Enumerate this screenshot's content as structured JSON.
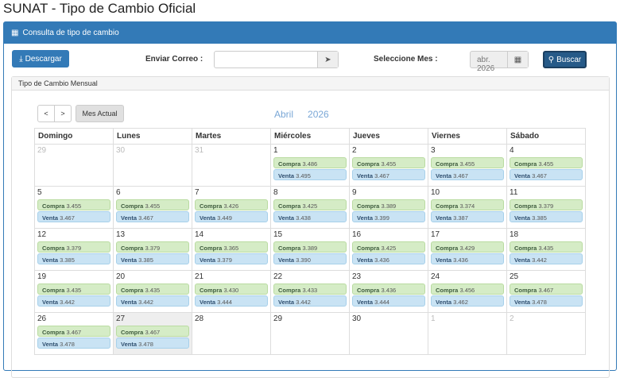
{
  "title": "SUNAT - Tipo de Cambio Oficial",
  "panel": {
    "title": "Consulta de tipo de cambio"
  },
  "toolbar": {
    "download_label": "Descargar",
    "email_label": "Enviar Correo :",
    "email_value": "",
    "month_label": "Seleccione Mes :",
    "month_value": "abr. 2026",
    "search_label": "Buscar"
  },
  "calendar": {
    "panel_title": "Tipo de Cambio Mensual",
    "prev": "<",
    "next": ">",
    "current_month_label": "Mes Actual",
    "month": "Abril",
    "year": "2026",
    "buy_label": "Compra",
    "sell_label": "Venta",
    "weekdays": [
      "Domingo",
      "Lunes",
      "Martes",
      "Miércoles",
      "Jueves",
      "Viernes",
      "Sábado"
    ],
    "weeks": [
      [
        {
          "d": "29",
          "o": true
        },
        {
          "d": "30",
          "o": true
        },
        {
          "d": "31",
          "o": true
        },
        {
          "d": "1",
          "c": "3.486",
          "v": "3.495"
        },
        {
          "d": "2",
          "c": "3.455",
          "v": "3.467"
        },
        {
          "d": "3",
          "c": "3.455",
          "v": "3.467"
        },
        {
          "d": "4",
          "c": "3.455",
          "v": "3.467"
        }
      ],
      [
        {
          "d": "5",
          "c": "3.455",
          "v": "3.467"
        },
        {
          "d": "6",
          "c": "3.455",
          "v": "3.467"
        },
        {
          "d": "7",
          "c": "3.426",
          "v": "3.449"
        },
        {
          "d": "8",
          "c": "3.425",
          "v": "3.438"
        },
        {
          "d": "9",
          "c": "3.389",
          "v": "3.399"
        },
        {
          "d": "10",
          "c": "3.374",
          "v": "3.387"
        },
        {
          "d": "11",
          "c": "3.379",
          "v": "3.385"
        }
      ],
      [
        {
          "d": "12",
          "c": "3.379",
          "v": "3.385"
        },
        {
          "d": "13",
          "c": "3.379",
          "v": "3.385"
        },
        {
          "d": "14",
          "c": "3.365",
          "v": "3.379"
        },
        {
          "d": "15",
          "c": "3.389",
          "v": "3.390"
        },
        {
          "d": "16",
          "c": "3.425",
          "v": "3.436"
        },
        {
          "d": "17",
          "c": "3.429",
          "v": "3.436"
        },
        {
          "d": "18",
          "c": "3.435",
          "v": "3.442"
        }
      ],
      [
        {
          "d": "19",
          "c": "3.435",
          "v": "3.442"
        },
        {
          "d": "20",
          "c": "3.435",
          "v": "3.442"
        },
        {
          "d": "21",
          "c": "3.430",
          "v": "3.444"
        },
        {
          "d": "22",
          "c": "3.433",
          "v": "3.442"
        },
        {
          "d": "23",
          "c": "3.436",
          "v": "3.444"
        },
        {
          "d": "24",
          "c": "3.456",
          "v": "3.462"
        },
        {
          "d": "25",
          "c": "3.467",
          "v": "3.478"
        }
      ],
      [
        {
          "d": "26",
          "c": "3.467",
          "v": "3.478"
        },
        {
          "d": "27",
          "c": "3.467",
          "v": "3.478",
          "today": true
        },
        {
          "d": "28"
        },
        {
          "d": "29"
        },
        {
          "d": "30"
        },
        {
          "d": "1",
          "o": true
        },
        {
          "d": "2",
          "o": true
        }
      ]
    ]
  },
  "colors": {
    "primary": "#337ab7",
    "buy_badge": "#d5ecc6",
    "sell_badge": "#c9e3f4"
  }
}
